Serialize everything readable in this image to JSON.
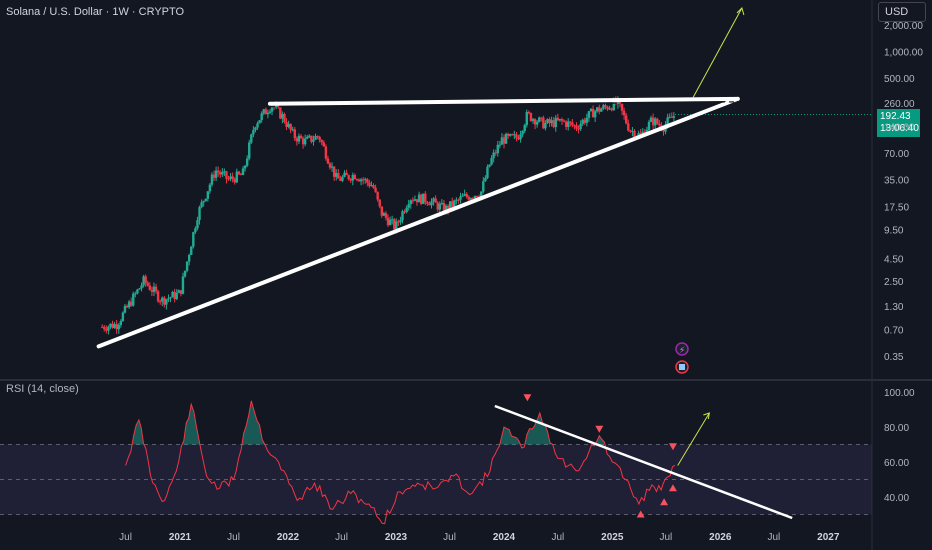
{
  "header": {
    "title": "Solana / U.S. Dollar · 1W · CRYPTO",
    "currency_button": "USD",
    "rsi_title": "RSI (14, close)"
  },
  "price_tag": {
    "value": "192.43",
    "countdown": "13:06:40"
  },
  "colors": {
    "background": "#131722",
    "bull": "#22ab94",
    "bear": "#f23645",
    "rsi_line": "#f23645",
    "rsi_band": "#7e57c2",
    "trendline": "#ffffff",
    "arrow": "#c8e34a",
    "price_tag": "#089981"
  },
  "chart_data": [
    {
      "type": "candlestick",
      "scale": "log",
      "y_ticks": [
        "2,000.00",
        "1,000.00",
        "500.00",
        "260.00",
        "140.00",
        "70.00",
        "35.00",
        "17.50",
        "9.50",
        "4.50",
        "2.50",
        "1.30",
        "0.70",
        "0.35"
      ],
      "x_ticks": [
        "Jul",
        "2021",
        "Jul",
        "2022",
        "Jul",
        "2023",
        "Jul",
        "2024",
        "Jul",
        "2025",
        "Jul",
        "2026",
        "Jul",
        "2027"
      ],
      "x": [
        "2020-04-13",
        "2020-06-01",
        "2020-09-01",
        "2020-11-01",
        "2021-01-01",
        "2021-03-01",
        "2021-05-01",
        "2021-06-15",
        "2021-08-01",
        "2021-09-10",
        "2021-11-07",
        "2021-12-15",
        "2022-01-20",
        "2022-03-01",
        "2022-04-15",
        "2022-06-15",
        "2022-08-15",
        "2022-10-15",
        "2022-11-10",
        "2022-12-30",
        "2023-02-15",
        "2023-04-15",
        "2023-06-15",
        "2023-08-15",
        "2023-10-15",
        "2023-11-15",
        "2023-12-25",
        "2024-02-15",
        "2024-03-20",
        "2024-05-15",
        "2024-07-15",
        "2024-09-01",
        "2024-11-01",
        "2025-01-19",
        "2025-03-01",
        "2025-04-07",
        "2025-05-15",
        "2025-06-22",
        "2025-08-01"
      ],
      "close": [
        0.75,
        0.8,
        2.5,
        1.5,
        1.8,
        14,
        45,
        35,
        40,
        150,
        250,
        180,
        110,
        95,
        110,
        35,
        40,
        30,
        15,
        10,
        22,
        21,
        16,
        22,
        25,
        55,
        100,
        105,
        190,
        150,
        160,
        140,
        210,
        260,
        130,
        110,
        165,
        140,
        192.43
      ],
      "trendlines": [
        {
          "label": "resistance",
          "from": [
            "2021-11-01",
            255
          ],
          "to": [
            "2026-03-01",
            290
          ]
        },
        {
          "label": "support",
          "from": [
            "2020-04-01",
            0.45
          ],
          "to": [
            "2026-03-01",
            290
          ]
        }
      ]
    },
    {
      "type": "line",
      "name": "RSI (14, close)",
      "y_ticks": [
        "100.00",
        "80.00",
        "60.00",
        "40.00"
      ],
      "levels": [
        70,
        50,
        30
      ],
      "x": [
        "2020-07-01",
        "2020-08-15",
        "2020-10-01",
        "2020-11-10",
        "2020-12-20",
        "2021-02-08",
        "2021-04-01",
        "2021-05-15",
        "2021-07-01",
        "2021-08-30",
        "2021-10-15",
        "2021-11-30",
        "2022-02-01",
        "2022-04-01",
        "2022-06-01",
        "2022-08-01",
        "2022-10-01",
        "2022-11-15",
        "2023-01-15",
        "2023-03-15",
        "2023-05-15",
        "2023-07-15",
        "2023-09-15",
        "2023-11-15",
        "2024-01-01",
        "2024-03-01",
        "2024-05-01",
        "2024-07-01",
        "2024-09-01",
        "2024-11-18",
        "2025-01-01",
        "2025-02-15",
        "2025-04-01",
        "2025-05-15",
        "2025-06-15",
        "2025-07-15",
        "2025-08-01"
      ],
      "values": [
        58,
        84,
        48,
        38,
        55,
        93,
        52,
        45,
        50,
        95,
        70,
        60,
        38,
        48,
        33,
        42,
        36,
        25,
        43,
        48,
        45,
        52,
        42,
        55,
        80,
        68,
        88,
        62,
        55,
        75,
        60,
        50,
        36,
        47,
        44,
        52,
        58
      ],
      "trendlines": [
        {
          "label": "resistance",
          "from": [
            "2023-12-01",
            92
          ],
          "to": [
            "2026-09-01",
            28
          ]
        }
      ]
    }
  ]
}
